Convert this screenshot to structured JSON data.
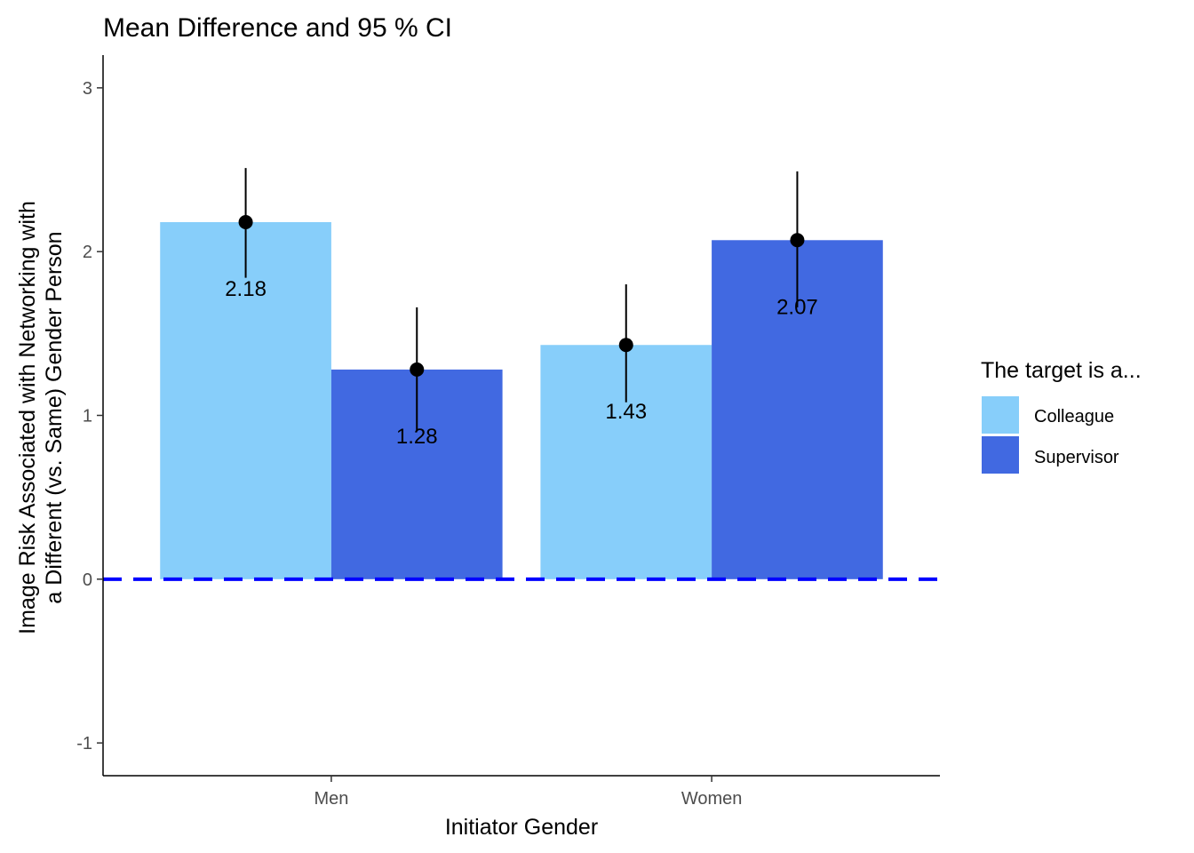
{
  "chart_data": {
    "type": "bar",
    "title": "Mean Difference and 95 % CI",
    "xlabel": "Initiator Gender",
    "ylabel_lines": [
      "Image Risk Associated with Networking with",
      "a Different (vs. Same) Gender Person"
    ],
    "categories": [
      "Men",
      "Women"
    ],
    "series": [
      {
        "name": "Colleague",
        "color": "#87cefa",
        "values": [
          2.18,
          1.43
        ],
        "ci_low": [
          1.84,
          1.08
        ],
        "ci_high": [
          2.51,
          1.8
        ]
      },
      {
        "name": "Supervisor",
        "color": "#4169e1",
        "values": [
          1.28,
          2.07
        ],
        "ci_low": [
          0.91,
          1.66
        ],
        "ci_high": [
          1.66,
          2.49
        ]
      }
    ],
    "data_labels": [
      [
        "2.18",
        "1.43"
      ],
      [
        "1.28",
        "2.07"
      ]
    ],
    "ylim": [
      -1.2,
      3.2
    ],
    "yticks": [
      -1,
      0,
      1,
      2,
      3
    ],
    "ytick_labels": [
      "-1",
      "0",
      "1",
      "2",
      "3"
    ],
    "reference_line": {
      "y": 0,
      "style": "dashed",
      "color": "#0000ff"
    },
    "legend": {
      "title": "The target is a...",
      "position": "right"
    },
    "grid": false
  }
}
